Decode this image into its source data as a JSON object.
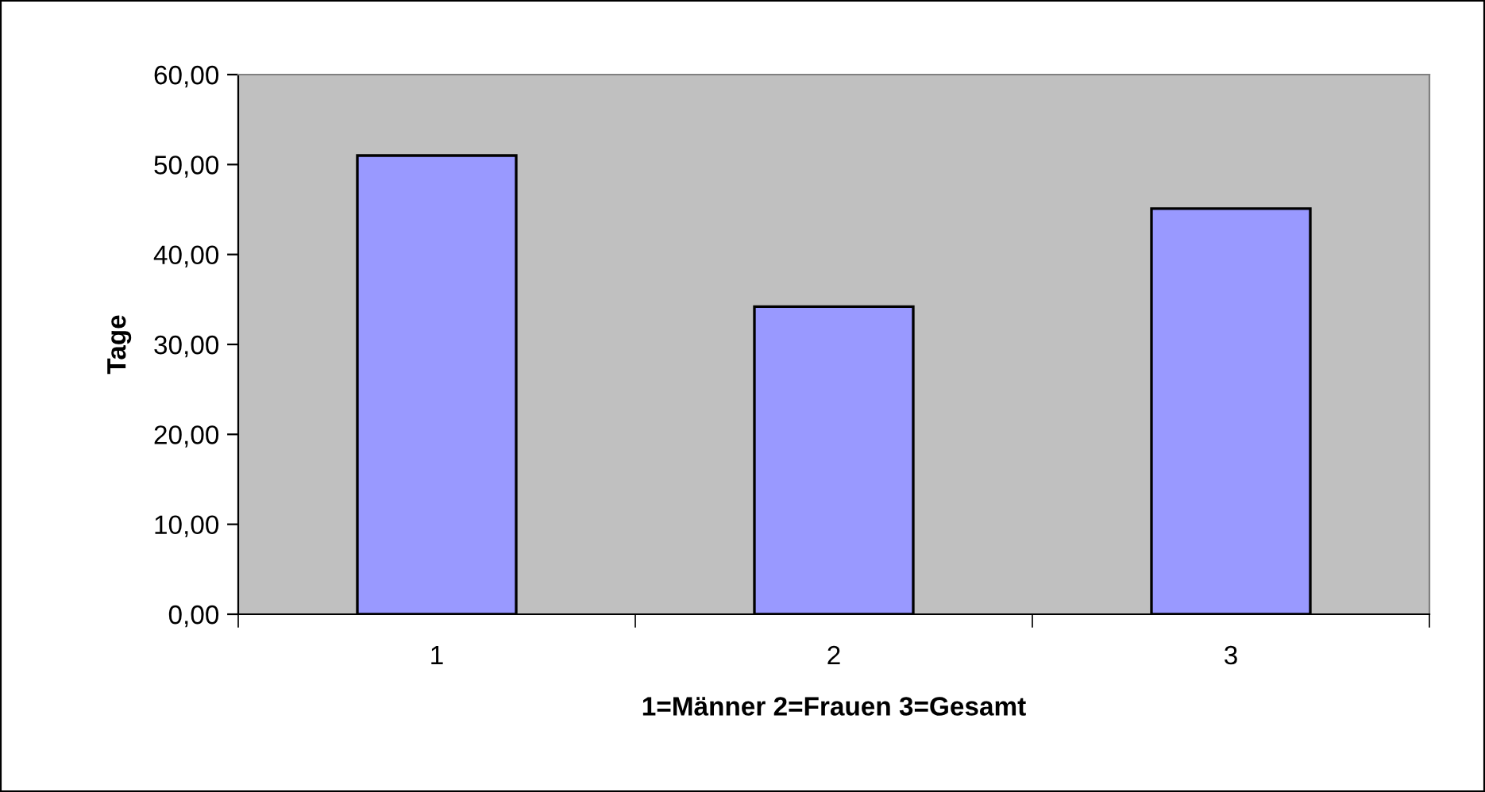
{
  "chart_data": {
    "type": "bar",
    "xlabel": "1=Männer 2=Frauen 3=Gesamt",
    "ylabel": "Tage",
    "categories": [
      "1",
      "2",
      "3"
    ],
    "values": [
      51.0,
      34.2,
      45.1
    ],
    "color": "#9999ff",
    "ylim": [
      0,
      60
    ],
    "yticks": [
      {
        "value": 0,
        "label": "0,00"
      },
      {
        "value": 10,
        "label": "10,00"
      },
      {
        "value": 20,
        "label": "20,00"
      },
      {
        "value": 30,
        "label": "30,00"
      },
      {
        "value": 40,
        "label": "40,00"
      },
      {
        "value": 50,
        "label": "50,00"
      },
      {
        "value": 60,
        "label": "60,00"
      }
    ],
    "grid": false,
    "legend": false
  }
}
